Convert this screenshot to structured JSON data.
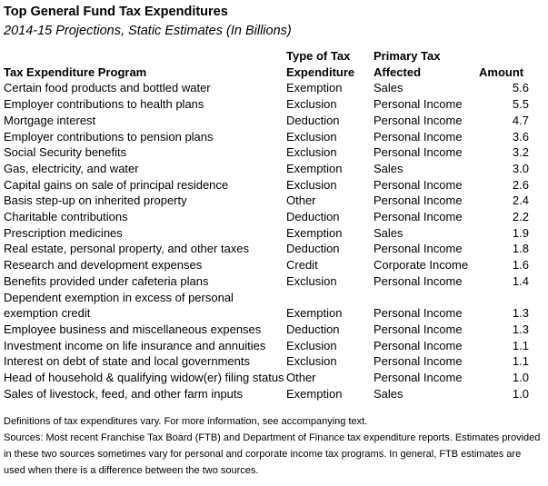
{
  "title": "Top General Fund Tax Expenditures",
  "subtitle": "2014-15 Projections, Static Estimates (In Billions)",
  "table": {
    "headers": {
      "program": "Tax Expenditure Program",
      "type": "Type of Tax Expenditure",
      "primary": "Primary Tax Affected",
      "amount": "Amount"
    },
    "rows": [
      {
        "program": "Certain food products and bottled water",
        "type": "Exemption",
        "primary": "Sales",
        "amount": "5.6"
      },
      {
        "program": "Employer contributions to health plans",
        "type": "Exclusion",
        "primary": "Personal Income",
        "amount": "5.5"
      },
      {
        "program": "Mortgage interest",
        "type": "Deduction",
        "primary": "Personal Income",
        "amount": "4.7"
      },
      {
        "program": "Employer contributions to pension plans",
        "type": "Exclusion",
        "primary": "Personal Income",
        "amount": "3.6"
      },
      {
        "program": "Social Security benefits",
        "type": "Exclusion",
        "primary": "Personal Income",
        "amount": "3.2"
      },
      {
        "program": "Gas, electricity, and water",
        "type": "Exemption",
        "primary": "Sales",
        "amount": "3.0"
      },
      {
        "program": "Capital gains on sale of principal residence",
        "type": "Exclusion",
        "primary": "Personal Income",
        "amount": "2.6"
      },
      {
        "program": "Basis step-up on inherited property",
        "type": "Other",
        "primary": "Personal Income",
        "amount": "2.4"
      },
      {
        "program": "Charitable contributions",
        "type": "Deduction",
        "primary": "Personal Income",
        "amount": "2.2"
      },
      {
        "program": "Prescription medicines",
        "type": "Exemption",
        "primary": "Sales",
        "amount": "1.9"
      },
      {
        "program": "Real estate, personal property, and other taxes",
        "type": "Deduction",
        "primary": "Personal Income",
        "amount": "1.8"
      },
      {
        "program": "Research and development expenses",
        "type": "Credit",
        "primary": "Corporate Income",
        "amount": "1.6"
      },
      {
        "program": "Benefits provided under cafeteria plans",
        "type": "Exclusion",
        "primary": "Personal Income",
        "amount": "1.4"
      },
      {
        "program": "Dependent exemption in excess of personal exemption credit",
        "type": "Exemption",
        "primary": "Personal Income",
        "amount": "1.3"
      },
      {
        "program": "Employee business and miscellaneous expenses",
        "type": "Deduction",
        "primary": "Personal Income",
        "amount": "1.3"
      },
      {
        "program": "Investment income on life insurance and annuities",
        "type": "Exclusion",
        "primary": "Personal Income",
        "amount": "1.1"
      },
      {
        "program": "Interest on debt of state and local governments",
        "type": "Exclusion",
        "primary": "Personal Income",
        "amount": "1.1"
      },
      {
        "program": "Head of household & qualifying widow(er) filing status",
        "type": "Other",
        "primary": "Personal Income",
        "amount": "1.0"
      },
      {
        "program": "Sales of livestock, feed, and other farm inputs",
        "type": "Exemption",
        "primary": "Sales",
        "amount": "1.0"
      }
    ]
  },
  "footnotes": [
    "Definitions of tax expenditures vary. For more information, see accompanying text.",
    "Sources: Most recent Franchise Tax Board (FTB) and Department of Finance tax expenditure reports. Estimates provided in these two sources sometimes vary for personal and corporate income tax programs. In general, FTB estimates are used when there is a difference between the two sources."
  ],
  "colors": {
    "text": "#000000",
    "background": "#ffffff"
  },
  "chart_data": {
    "type": "table",
    "title": "Top General Fund Tax Expenditures",
    "subtitle": "2014-15 Projections, Static Estimates (In Billions)",
    "columns": [
      "Tax Expenditure Program",
      "Type of Tax Expenditure",
      "Primary Tax Affected",
      "Amount"
    ],
    "rows": [
      [
        "Certain food products and bottled water",
        "Exemption",
        "Sales",
        5.6
      ],
      [
        "Employer contributions to health plans",
        "Exclusion",
        "Personal Income",
        5.5
      ],
      [
        "Mortgage interest",
        "Deduction",
        "Personal Income",
        4.7
      ],
      [
        "Employer contributions to pension plans",
        "Exclusion",
        "Personal Income",
        3.6
      ],
      [
        "Social Security benefits",
        "Exclusion",
        "Personal Income",
        3.2
      ],
      [
        "Gas, electricity, and water",
        "Exemption",
        "Sales",
        3.0
      ],
      [
        "Capital gains on sale of principal residence",
        "Exclusion",
        "Personal Income",
        2.6
      ],
      [
        "Basis step-up on inherited property",
        "Other",
        "Personal Income",
        2.4
      ],
      [
        "Charitable contributions",
        "Deduction",
        "Personal Income",
        2.2
      ],
      [
        "Prescription medicines",
        "Exemption",
        "Sales",
        1.9
      ],
      [
        "Real estate, personal property, and other taxes",
        "Deduction",
        "Personal Income",
        1.8
      ],
      [
        "Research and development expenses",
        "Credit",
        "Corporate Income",
        1.6
      ],
      [
        "Benefits provided under cafeteria plans",
        "Exclusion",
        "Personal Income",
        1.4
      ],
      [
        "Dependent exemption in excess of personal exemption credit",
        "Exemption",
        "Personal Income",
        1.3
      ],
      [
        "Employee business and miscellaneous expenses",
        "Deduction",
        "Personal Income",
        1.3
      ],
      [
        "Investment income on life insurance and annuities",
        "Exclusion",
        "Personal Income",
        1.1
      ],
      [
        "Interest on debt of state and local governments",
        "Exclusion",
        "Personal Income",
        1.1
      ],
      [
        "Head of household & qualifying widow(er) filing status",
        "Other",
        "Personal Income",
        1.0
      ],
      [
        "Sales of livestock, feed, and other farm inputs",
        "Exemption",
        "Sales",
        1.0
      ]
    ],
    "amount_unit": "billions of dollars",
    "notes": "Static table figure; no gridlines; amounts right-aligned"
  }
}
